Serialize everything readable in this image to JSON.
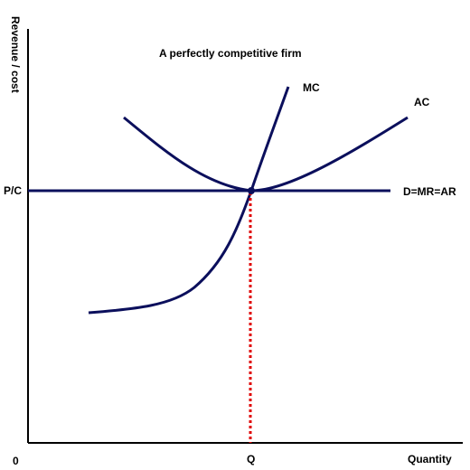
{
  "title": "A perfectly competitive firm",
  "axes": {
    "y_label": "Revenue / cost",
    "x_label": "Quantity",
    "origin_label": "0"
  },
  "markers": {
    "price_label": "P/C",
    "quantity_label": "Q"
  },
  "curves": {
    "mc_label": "MC",
    "ac_label": "AC",
    "demand_label": "D=MR=AR"
  },
  "colors": {
    "curve": "#0b0f5c",
    "axis": "#000000",
    "guide": "#e00000",
    "point": "#0b0f5c"
  }
}
